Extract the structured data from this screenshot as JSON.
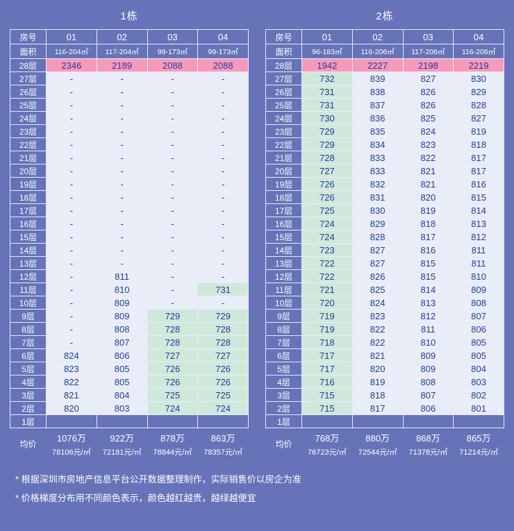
{
  "chart_data": [
    {
      "type": "table",
      "title": "1栋",
      "room_header_label": "房号",
      "area_label": "面积",
      "avg_label": "均价",
      "rooms": [
        "01",
        "02",
        "03",
        "04"
      ],
      "areas": [
        "116-204㎡",
        "117-204㎡",
        "99-173㎡",
        "99-173㎡"
      ],
      "floors": [
        {
          "label": "28层",
          "values": [
            "2346",
            "2189",
            "2088",
            "2088"
          ]
        },
        {
          "label": "27层",
          "values": [
            "-",
            "-",
            "-",
            "-"
          ]
        },
        {
          "label": "26层",
          "values": [
            "-",
            "-",
            "-",
            "-"
          ]
        },
        {
          "label": "25层",
          "values": [
            "-",
            "-",
            "-",
            "-"
          ]
        },
        {
          "label": "24层",
          "values": [
            "-",
            "-",
            "-",
            "-"
          ]
        },
        {
          "label": "23层",
          "values": [
            "-",
            "-",
            "-",
            "-"
          ]
        },
        {
          "label": "22层",
          "values": [
            "-",
            "-",
            "-",
            "-"
          ]
        },
        {
          "label": "21层",
          "values": [
            "-",
            "-",
            "-",
            "-"
          ]
        },
        {
          "label": "20层",
          "values": [
            "-",
            "-",
            "-",
            "-"
          ]
        },
        {
          "label": "19层",
          "values": [
            "-",
            "-",
            "-",
            "-"
          ]
        },
        {
          "label": "18层",
          "values": [
            "-",
            "-",
            "-",
            "-"
          ]
        },
        {
          "label": "17层",
          "values": [
            "-",
            "-",
            "-",
            "-"
          ]
        },
        {
          "label": "16层",
          "values": [
            "-",
            "-",
            "-",
            "-"
          ]
        },
        {
          "label": "15层",
          "values": [
            "-",
            "-",
            "-",
            "-"
          ]
        },
        {
          "label": "14层",
          "values": [
            "-",
            "-",
            "-",
            "-"
          ]
        },
        {
          "label": "13层",
          "values": [
            "-",
            "-",
            "-",
            "-"
          ]
        },
        {
          "label": "12层",
          "values": [
            "-",
            "811",
            "-",
            "-"
          ]
        },
        {
          "label": "11层",
          "values": [
            "-",
            "810",
            "-",
            "731"
          ]
        },
        {
          "label": "10层",
          "values": [
            "-",
            "809",
            "-",
            "-"
          ]
        },
        {
          "label": "9层",
          "values": [
            "-",
            "809",
            "729",
            "729"
          ]
        },
        {
          "label": "8层",
          "values": [
            "-",
            "808",
            "728",
            "728"
          ]
        },
        {
          "label": "7层",
          "values": [
            "-",
            "807",
            "728",
            "728"
          ]
        },
        {
          "label": "6层",
          "values": [
            "824",
            "806",
            "727",
            "727"
          ]
        },
        {
          "label": "5层",
          "values": [
            "823",
            "805",
            "726",
            "726"
          ]
        },
        {
          "label": "4层",
          "values": [
            "822",
            "805",
            "726",
            "726"
          ]
        },
        {
          "label": "3层",
          "values": [
            "821",
            "804",
            "725",
            "725"
          ]
        },
        {
          "label": "2层",
          "values": [
            "820",
            "803",
            "724",
            "724"
          ]
        },
        {
          "label": "1层",
          "values": [
            "",
            "",
            "",
            ""
          ]
        }
      ],
      "averages": [
        {
          "total": "1076万",
          "unit": "78106元/㎡"
        },
        {
          "total": "922万",
          "unit": "72181元/㎡"
        },
        {
          "total": "878万",
          "unit": "78844元/㎡"
        },
        {
          "total": "863万",
          "unit": "78357元/㎡"
        }
      ]
    },
    {
      "type": "table",
      "title": "2栋",
      "room_header_label": "房号",
      "area_label": "面积",
      "avg_label": "均价",
      "rooms": [
        "01",
        "02",
        "03",
        "04"
      ],
      "areas": [
        "96-183㎡",
        "116-206㎡",
        "117-206㎡",
        "116-206㎡"
      ],
      "floors": [
        {
          "label": "28层",
          "values": [
            "1942",
            "2227",
            "2198",
            "2219"
          ]
        },
        {
          "label": "27层",
          "values": [
            "732",
            "839",
            "827",
            "830"
          ]
        },
        {
          "label": "26层",
          "values": [
            "731",
            "838",
            "826",
            "829"
          ]
        },
        {
          "label": "25层",
          "values": [
            "731",
            "837",
            "826",
            "828"
          ]
        },
        {
          "label": "24层",
          "values": [
            "730",
            "836",
            "825",
            "827"
          ]
        },
        {
          "label": "23层",
          "values": [
            "729",
            "835",
            "824",
            "819"
          ]
        },
        {
          "label": "22层",
          "values": [
            "729",
            "834",
            "823",
            "818"
          ]
        },
        {
          "label": "21层",
          "values": [
            "728",
            "833",
            "822",
            "817"
          ]
        },
        {
          "label": "20层",
          "values": [
            "727",
            "833",
            "821",
            "817"
          ]
        },
        {
          "label": "19层",
          "values": [
            "726",
            "832",
            "821",
            "816"
          ]
        },
        {
          "label": "18层",
          "values": [
            "726",
            "831",
            "820",
            "815"
          ]
        },
        {
          "label": "17层",
          "values": [
            "725",
            "830",
            "819",
            "814"
          ]
        },
        {
          "label": "16层",
          "values": [
            "724",
            "829",
            "818",
            "813"
          ]
        },
        {
          "label": "15层",
          "values": [
            "724",
            "828",
            "817",
            "812"
          ]
        },
        {
          "label": "14层",
          "values": [
            "723",
            "827",
            "816",
            "811"
          ]
        },
        {
          "label": "13层",
          "values": [
            "722",
            "827",
            "815",
            "811"
          ]
        },
        {
          "label": "12层",
          "values": [
            "722",
            "826",
            "815",
            "810"
          ]
        },
        {
          "label": "11层",
          "values": [
            "721",
            "825",
            "814",
            "809"
          ]
        },
        {
          "label": "10层",
          "values": [
            "720",
            "824",
            "813",
            "808"
          ]
        },
        {
          "label": "9层",
          "values": [
            "719",
            "823",
            "812",
            "807"
          ]
        },
        {
          "label": "8层",
          "values": [
            "719",
            "822",
            "811",
            "806"
          ]
        },
        {
          "label": "7层",
          "values": [
            "718",
            "822",
            "810",
            "805"
          ]
        },
        {
          "label": "6层",
          "values": [
            "717",
            "821",
            "809",
            "805"
          ]
        },
        {
          "label": "5层",
          "values": [
            "717",
            "820",
            "809",
            "804"
          ]
        },
        {
          "label": "4层",
          "values": [
            "716",
            "819",
            "808",
            "803"
          ]
        },
        {
          "label": "3层",
          "values": [
            "715",
            "818",
            "807",
            "802"
          ]
        },
        {
          "label": "2层",
          "values": [
            "715",
            "817",
            "806",
            "801"
          ]
        },
        {
          "label": "1层",
          "values": [
            "",
            "",
            "",
            ""
          ]
        }
      ],
      "averages": [
        {
          "total": "768万",
          "unit": "76723元/㎡"
        },
        {
          "total": "880万",
          "unit": "72544元/㎡"
        },
        {
          "total": "868万",
          "unit": "71378元/㎡"
        },
        {
          "total": "865万",
          "unit": "71214元/㎡"
        }
      ]
    }
  ],
  "notes": [
    "* 根据深圳市房地产信息平台公开数据整理制作，实际销售价以房企为准",
    "* 价格梯度分布用不同颜色表示，颜色越红越贵，越绿越便宜"
  ],
  "colors": {
    "page_bg": "#6673b8",
    "grid_line": "#e7ebf8",
    "cell_light": "#e9edf8",
    "cell_green": "#cfe8da",
    "cell_pink": "#f899b9",
    "cell_text": "#1e3da0",
    "header_text": "#ffffff"
  }
}
